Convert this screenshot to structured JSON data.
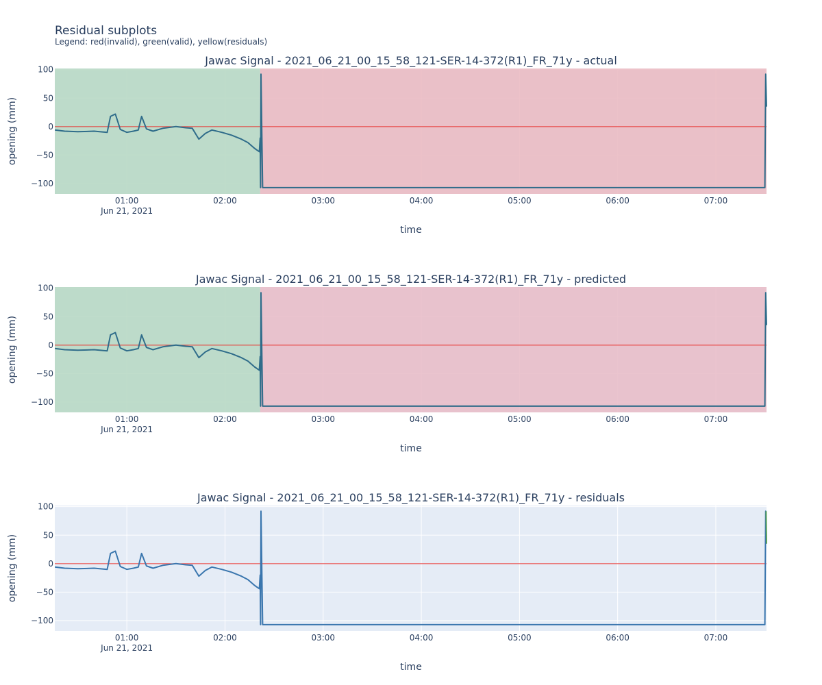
{
  "header": {
    "title": "Residual subplots",
    "subtitle": "Legend: red(invalid), green(valid), yellow(residuals)"
  },
  "chart_data": [
    {
      "type": "line",
      "title": "Jawac Signal - 2021_06_21_00_15_58_121-SER-14-372(R1)_FR_71y - actual",
      "xlabel": "time",
      "ylabel": "opening (mm)",
      "x_ticks": [
        "01:00",
        "02:00",
        "03:00",
        "04:00",
        "05:00",
        "06:00",
        "07:00"
      ],
      "x_date_label": "Jun 21, 2021",
      "xlim": [
        "2021-06-21 00:15:58",
        "2021-06-21 07:31:00"
      ],
      "y_ticks": [
        100,
        50,
        0,
        -50,
        -100
      ],
      "ylim": [
        -118,
        102
      ],
      "grid": true,
      "zero_line": 0,
      "regions": [
        {
          "label": "valid",
          "color": "#b7d8c4",
          "x": [
            "2021-06-21 00:15:58",
            "2021-06-21 02:21:30"
          ]
        },
        {
          "label": "invalid",
          "color": "#eabac2",
          "x": [
            "2021-06-21 02:21:30",
            "2021-06-21 07:31:00"
          ]
        }
      ],
      "series": [
        {
          "color": "#2f6c8a",
          "x": [
            "2021-06-21 00:16:00",
            "2021-06-21 00:22:00",
            "2021-06-21 00:30:00",
            "2021-06-21 00:40:00",
            "2021-06-21 00:48:00",
            "2021-06-21 00:50:00",
            "2021-06-21 00:53:00",
            "2021-06-21 00:56:00",
            "2021-06-21 01:00:00",
            "2021-06-21 01:04:00",
            "2021-06-21 01:07:00",
            "2021-06-21 01:09:00",
            "2021-06-21 01:12:00",
            "2021-06-21 01:16:00",
            "2021-06-21 01:22:00",
            "2021-06-21 01:30:00",
            "2021-06-21 01:36:00",
            "2021-06-21 01:40:00",
            "2021-06-21 01:44:00",
            "2021-06-21 01:48:00",
            "2021-06-21 01:52:00",
            "2021-06-21 01:58:00",
            "2021-06-21 02:04:00",
            "2021-06-21 02:10:00",
            "2021-06-21 02:14:00",
            "2021-06-21 02:18:00",
            "2021-06-21 02:20:00",
            "2021-06-21 02:21:00",
            "2021-06-21 02:21:30",
            "2021-06-21 02:21:45",
            "2021-06-21 02:22:00",
            "2021-06-21 02:23:00",
            "2021-06-21 03:00:00",
            "2021-06-21 05:00:00",
            "2021-06-21 07:30:00",
            "2021-06-21 07:30:30",
            "2021-06-21 07:31:00"
          ],
          "y": [
            -6,
            -8,
            -9,
            -8,
            -10,
            18,
            22,
            -5,
            -10,
            -8,
            -6,
            18,
            -4,
            -8,
            -3,
            0,
            -2,
            -3,
            -22,
            -12,
            -6,
            -10,
            -15,
            -22,
            -28,
            -38,
            -42,
            -44,
            -20,
            -107,
            92,
            -107,
            -107,
            -107,
            -107,
            92,
            35
          ]
        }
      ]
    },
    {
      "type": "line",
      "title": "Jawac Signal - 2021_06_21_00_15_58_121-SER-14-372(R1)_FR_71y - predicted",
      "xlabel": "time",
      "ylabel": "opening (mm)",
      "x_ticks": [
        "01:00",
        "02:00",
        "03:00",
        "04:00",
        "05:00",
        "06:00",
        "07:00"
      ],
      "x_date_label": "Jun 21, 2021",
      "xlim": [
        "2021-06-21 00:15:58",
        "2021-06-21 07:31:00"
      ],
      "y_ticks": [
        100,
        50,
        0,
        -50,
        -100
      ],
      "ylim": [
        -118,
        102
      ],
      "grid": true,
      "zero_line": 0,
      "regions": [
        {
          "label": "valid",
          "color": "#b7d8c4",
          "x": [
            "2021-06-21 00:15:58",
            "2021-06-21 02:21:30"
          ]
        },
        {
          "label": "invalid",
          "color": "#e8bcc7",
          "x": [
            "2021-06-21 02:21:30",
            "2021-06-21 07:31:00"
          ]
        }
      ],
      "series": [
        {
          "color": "#2f6c8a",
          "x": [
            "2021-06-21 00:16:00",
            "2021-06-21 00:22:00",
            "2021-06-21 00:30:00",
            "2021-06-21 00:40:00",
            "2021-06-21 00:48:00",
            "2021-06-21 00:50:00",
            "2021-06-21 00:53:00",
            "2021-06-21 00:56:00",
            "2021-06-21 01:00:00",
            "2021-06-21 01:04:00",
            "2021-06-21 01:07:00",
            "2021-06-21 01:09:00",
            "2021-06-21 01:12:00",
            "2021-06-21 01:16:00",
            "2021-06-21 01:22:00",
            "2021-06-21 01:30:00",
            "2021-06-21 01:36:00",
            "2021-06-21 01:40:00",
            "2021-06-21 01:44:00",
            "2021-06-21 01:48:00",
            "2021-06-21 01:52:00",
            "2021-06-21 01:58:00",
            "2021-06-21 02:04:00",
            "2021-06-21 02:10:00",
            "2021-06-21 02:14:00",
            "2021-06-21 02:18:00",
            "2021-06-21 02:20:00",
            "2021-06-21 02:21:00",
            "2021-06-21 02:21:30",
            "2021-06-21 02:21:45",
            "2021-06-21 02:22:00",
            "2021-06-21 02:23:00",
            "2021-06-21 03:00:00",
            "2021-06-21 05:00:00",
            "2021-06-21 07:30:00",
            "2021-06-21 07:30:30",
            "2021-06-21 07:31:00"
          ],
          "y": [
            -6,
            -8,
            -9,
            -8,
            -10,
            18,
            22,
            -5,
            -10,
            -8,
            -6,
            18,
            -4,
            -8,
            -3,
            0,
            -2,
            -3,
            -22,
            -12,
            -6,
            -10,
            -15,
            -22,
            -28,
            -38,
            -42,
            -44,
            -20,
            -107,
            92,
            -107,
            -107,
            -107,
            -107,
            92,
            35
          ]
        }
      ]
    },
    {
      "type": "line",
      "title": "Jawac Signal - 2021_06_21_00_15_58_121-SER-14-372(R1)_FR_71y - residuals",
      "xlabel": "time",
      "ylabel": "opening (mm)",
      "x_ticks": [
        "01:00",
        "02:00",
        "03:00",
        "04:00",
        "05:00",
        "06:00",
        "07:00"
      ],
      "x_date_label": "Jun 21, 2021",
      "xlim": [
        "2021-06-21 00:15:58",
        "2021-06-21 07:31:00"
      ],
      "y_ticks": [
        100,
        50,
        0,
        -50,
        -100
      ],
      "ylim": [
        -118,
        102
      ],
      "grid": true,
      "zero_line": 0,
      "regions": [],
      "series": [
        {
          "color": "#3a76ae",
          "x": [
            "2021-06-21 00:16:00",
            "2021-06-21 00:22:00",
            "2021-06-21 00:30:00",
            "2021-06-21 00:40:00",
            "2021-06-21 00:48:00",
            "2021-06-21 00:50:00",
            "2021-06-21 00:53:00",
            "2021-06-21 00:56:00",
            "2021-06-21 01:00:00",
            "2021-06-21 01:04:00",
            "2021-06-21 01:07:00",
            "2021-06-21 01:09:00",
            "2021-06-21 01:12:00",
            "2021-06-21 01:16:00",
            "2021-06-21 01:22:00",
            "2021-06-21 01:30:00",
            "2021-06-21 01:36:00",
            "2021-06-21 01:40:00",
            "2021-06-21 01:44:00",
            "2021-06-21 01:48:00",
            "2021-06-21 01:52:00",
            "2021-06-21 01:58:00",
            "2021-06-21 02:04:00",
            "2021-06-21 02:10:00",
            "2021-06-21 02:14:00",
            "2021-06-21 02:18:00",
            "2021-06-21 02:20:00",
            "2021-06-21 02:21:00",
            "2021-06-21 02:21:30",
            "2021-06-21 02:21:45",
            "2021-06-21 02:22:00",
            "2021-06-21 02:23:00",
            "2021-06-21 03:00:00",
            "2021-06-21 05:00:00",
            "2021-06-21 07:30:00",
            "2021-06-21 07:30:30",
            "2021-06-21 07:31:00"
          ],
          "y": [
            -6,
            -8,
            -9,
            -8,
            -10,
            18,
            22,
            -5,
            -10,
            -8,
            -6,
            18,
            -4,
            -8,
            -3,
            0,
            -2,
            -3,
            -22,
            -12,
            -6,
            -10,
            -15,
            -22,
            -28,
            -38,
            -42,
            -44,
            -20,
            -107,
            92,
            -107,
            -107,
            -107,
            -107,
            92,
            35
          ]
        },
        {
          "color": "#5aa05a",
          "x": [
            "2021-06-21 07:30:45",
            "2021-06-21 07:31:00"
          ],
          "y": [
            92,
            35
          ]
        }
      ]
    }
  ]
}
